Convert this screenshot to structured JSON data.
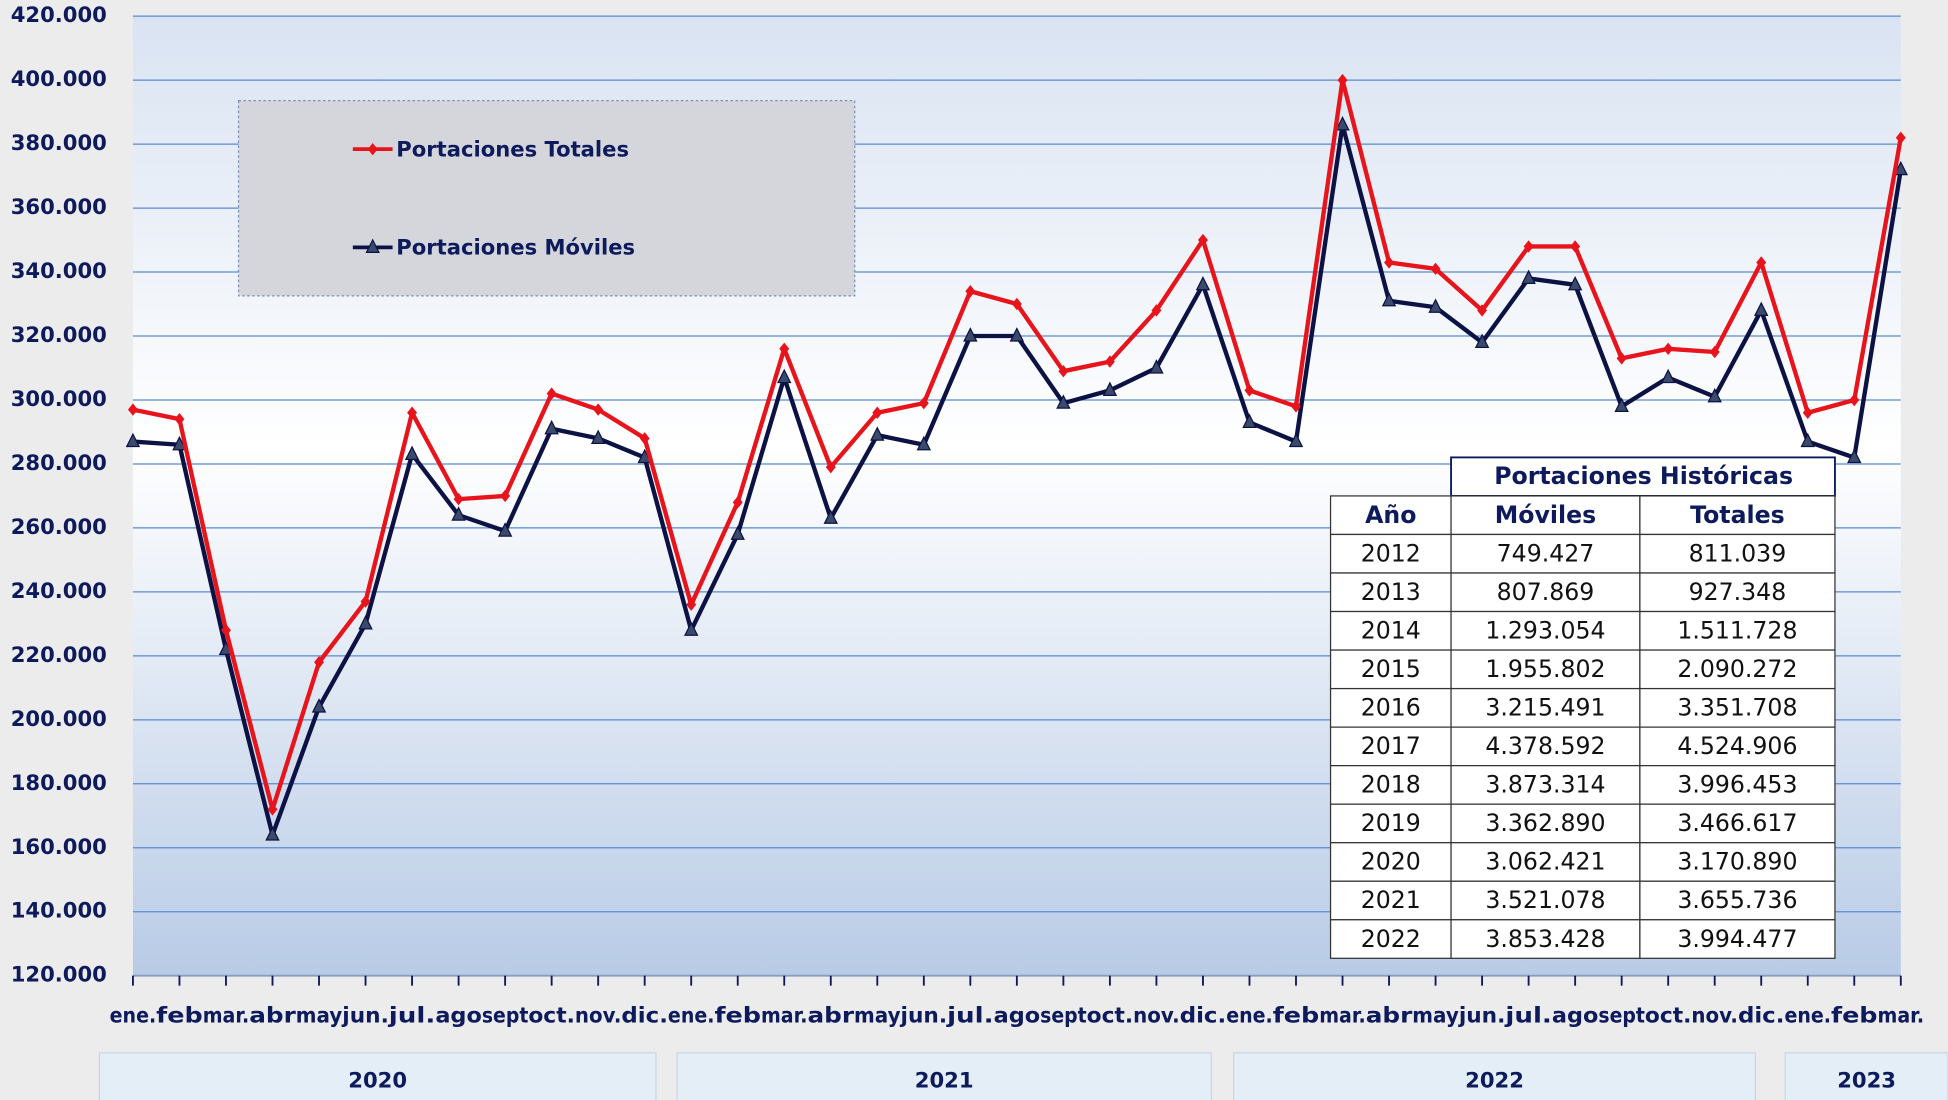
{
  "chart_data": {
    "type": "line",
    "categories": [
      "ene.",
      "feb",
      "mar.",
      "abr",
      "may",
      "jun.",
      "jul.",
      "ago",
      "sept",
      "oct.",
      "nov.",
      "dic.",
      "ene.",
      "feb",
      "mar.",
      "abr",
      "may",
      "jun.",
      "jul.",
      "ago",
      "sept",
      "oct.",
      "nov.",
      "dic.",
      "ene.",
      "feb",
      "mar.",
      "abr",
      "may",
      "jun.",
      "jul.",
      "ago",
      "sept",
      "oct.",
      "nov.",
      "dic.",
      "ene.",
      "feb",
      "mar."
    ],
    "year_groups": [
      "2020",
      "2021",
      "2022",
      "2023"
    ],
    "series": [
      {
        "name": "Portaciones Totales",
        "color": "#e8141b",
        "marker": "diamond",
        "values": [
          297000,
          294000,
          228000,
          172000,
          218000,
          237000,
          296000,
          269000,
          270000,
          302000,
          297000,
          288000,
          236000,
          268000,
          316000,
          279000,
          296000,
          299000,
          334000,
          330000,
          309000,
          312000,
          328000,
          350000,
          303000,
          298000,
          400000,
          343000,
          341000,
          328000,
          348000,
          348000,
          313000,
          316000,
          315000,
          343000,
          296000,
          300000,
          382000
        ]
      },
      {
        "name": "Portaciones Móviles",
        "color": "#0d1245",
        "marker": "triangle",
        "values": [
          287000,
          286000,
          222000,
          164000,
          204000,
          230000,
          283000,
          264000,
          259000,
          291000,
          288000,
          282000,
          228000,
          258000,
          307000,
          263000,
          289000,
          286000,
          320000,
          320000,
          299000,
          303000,
          310000,
          336000,
          293000,
          287000,
          386000,
          331000,
          329000,
          318000,
          338000,
          336000,
          298000,
          307000,
          301000,
          328000,
          287000,
          282000,
          372000
        ]
      }
    ],
    "ylim": [
      120000,
      420000
    ],
    "yticks": [
      {
        "value": 120000,
        "label": "120.000"
      },
      {
        "value": 140000,
        "label": "140.000"
      },
      {
        "value": 160000,
        "label": "160.000"
      },
      {
        "value": 180000,
        "label": "180.000"
      },
      {
        "value": 200000,
        "label": "200.000"
      },
      {
        "value": 220000,
        "label": "220.000"
      },
      {
        "value": 240000,
        "label": "240.000"
      },
      {
        "value": 260000,
        "label": "260.000"
      },
      {
        "value": 280000,
        "label": "280.000"
      },
      {
        "value": 300000,
        "label": "300.000"
      },
      {
        "value": 320000,
        "label": "320.000"
      },
      {
        "value": 340000,
        "label": "340.000"
      },
      {
        "value": 360000,
        "label": "360.000"
      },
      {
        "value": 380000,
        "label": "380.000"
      },
      {
        "value": 400000,
        "label": "400.000"
      },
      {
        "value": 420000,
        "label": "420.000"
      }
    ],
    "grid": true,
    "legend": "upper-left"
  },
  "table": {
    "title": "Portaciones Históricas",
    "header": [
      "Año",
      "Móviles",
      "Totales"
    ],
    "rows": [
      [
        "2012",
        "749.427",
        "811.039"
      ],
      [
        "2013",
        "807.869",
        "927.348"
      ],
      [
        "2014",
        "1.293.054",
        "1.511.728"
      ],
      [
        "2015",
        "1.955.802",
        "2.090.272"
      ],
      [
        "2016",
        "3.215.491",
        "3.351.708"
      ],
      [
        "2017",
        "4.378.592",
        "4.524.906"
      ],
      [
        "2018",
        "3.873.314",
        "3.996.453"
      ],
      [
        "2019",
        "3.362.890",
        "3.466.617"
      ],
      [
        "2020",
        "3.062.421",
        "3.170.890"
      ],
      [
        "2021",
        "3.521.078",
        "3.655.736"
      ],
      [
        "2022",
        "3.853.428",
        "3.994.477"
      ]
    ]
  }
}
